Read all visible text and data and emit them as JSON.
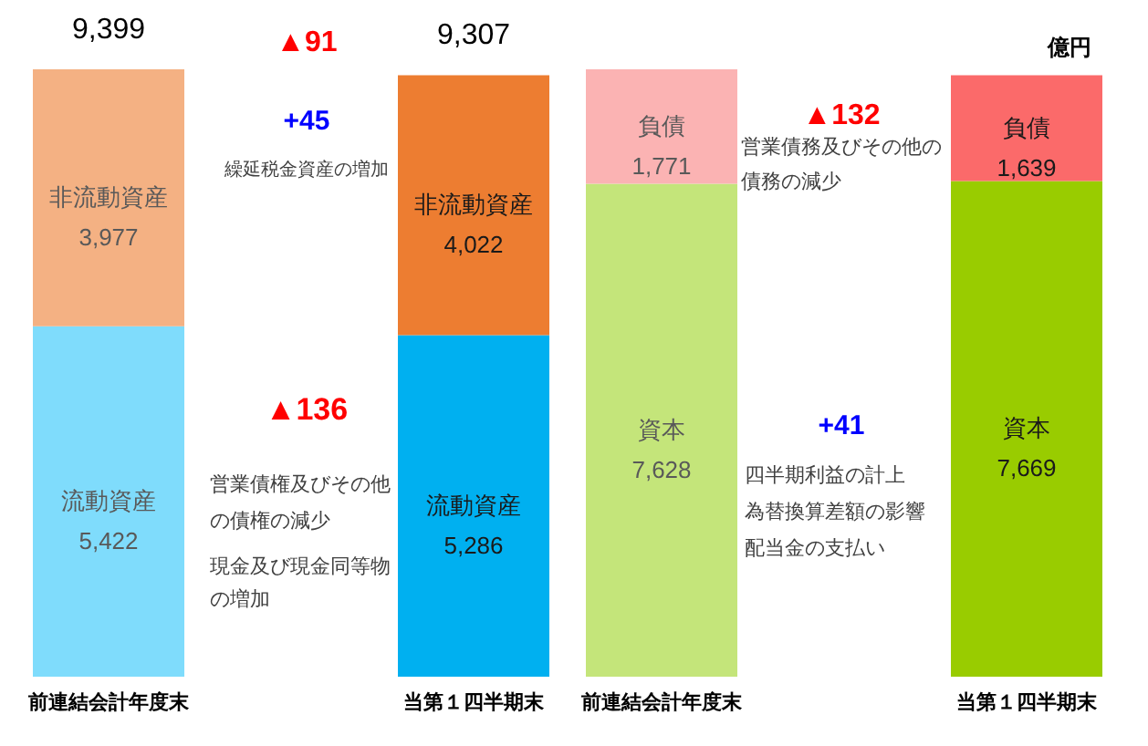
{
  "chart_data": [
    {
      "type": "bar",
      "stacked": true,
      "categories": [
        "前連結会計年度末",
        "当第１四半期末"
      ],
      "series": [
        {
          "name": "流動資産",
          "values": [
            5422,
            5286
          ],
          "colors": [
            "#7fdcfc",
            "#00b0f0"
          ],
          "value_labels": [
            "5,422",
            "5,286"
          ]
        },
        {
          "name": "非流動資産",
          "values": [
            3977,
            4022
          ],
          "colors": [
            "#f4b183",
            "#ed7d31"
          ],
          "value_labels": [
            "3,977",
            "4,022"
          ]
        }
      ],
      "totals": [
        "9,399",
        "9,307"
      ],
      "annotations": [
        "▲91",
        "+45",
        "繰延税金資産の増加",
        "▲136",
        "営業債権及びその他",
        "の債権の減少",
        "現金及び現金同等物",
        "の増加"
      ]
    },
    {
      "type": "bar",
      "stacked": true,
      "categories": [
        "前連結会計年度末",
        "当第１四半期末"
      ],
      "series": [
        {
          "name": "資本",
          "values": [
            7628,
            7669
          ],
          "colors": [
            "#c4e57a",
            "#99cc00"
          ],
          "value_labels": [
            "7,628",
            "7,669"
          ]
        },
        {
          "name": "負債",
          "values": [
            1771,
            1639
          ],
          "colors": [
            "#fbb3b3",
            "#fb6a6a"
          ],
          "value_labels": [
            "1,771",
            "1,639"
          ]
        }
      ],
      "annotations": [
        "億円",
        "▲132",
        "営業債務及びその他の",
        "債務の減少",
        "+41",
        "四半期利益の計上",
        "為替換算差額の影響",
        "配当金の支払い"
      ]
    }
  ]
}
